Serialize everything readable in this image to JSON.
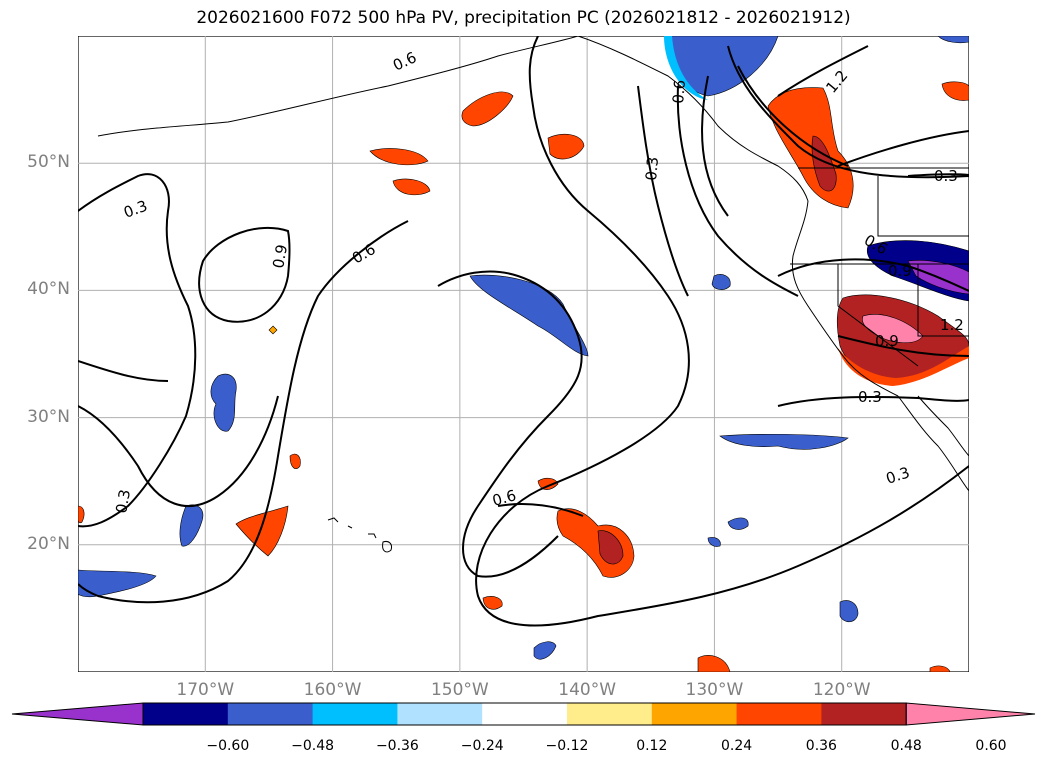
{
  "title": "2026021600 F072 500 hPa PV, precipitation PC (2026021812 - 2026021912)",
  "lat_labels": [
    {
      "text": "50°N",
      "lat": 50
    },
    {
      "text": "40°N",
      "lat": 40
    },
    {
      "text": "30°N",
      "lat": 30
    },
    {
      "text": "20°N",
      "lat": 20
    }
  ],
  "lon_labels": [
    {
      "text": "170°W",
      "lon": -170
    },
    {
      "text": "160°W",
      "lon": -160
    },
    {
      "text": "150°W",
      "lon": -150
    },
    {
      "text": "140°W",
      "lon": -140
    },
    {
      "text": "130°W",
      "lon": -130
    },
    {
      "text": "120°W",
      "lon": -120
    }
  ],
  "contour_labels": [
    "0.3",
    "0.6",
    "0.9",
    "1.2"
  ],
  "colorbar": {
    "ticks": [
      "−0.60",
      "−0.48",
      "−0.36",
      "−0.24",
      "−0.12",
      "0.12",
      "0.24",
      "0.36",
      "0.48",
      "0.60"
    ],
    "colors": [
      "#9932cc",
      "#00008b",
      "#3a5fcd",
      "#00bfff",
      "#b0e2ff",
      "#ffffff",
      "#ffec8b",
      "#ffa500",
      "#ff4500",
      "#b22222",
      "#ff82ab"
    ]
  },
  "colors": {
    "land_outline": "#000000",
    "grid": "#b0b0b0",
    "contour": "#000000"
  }
}
